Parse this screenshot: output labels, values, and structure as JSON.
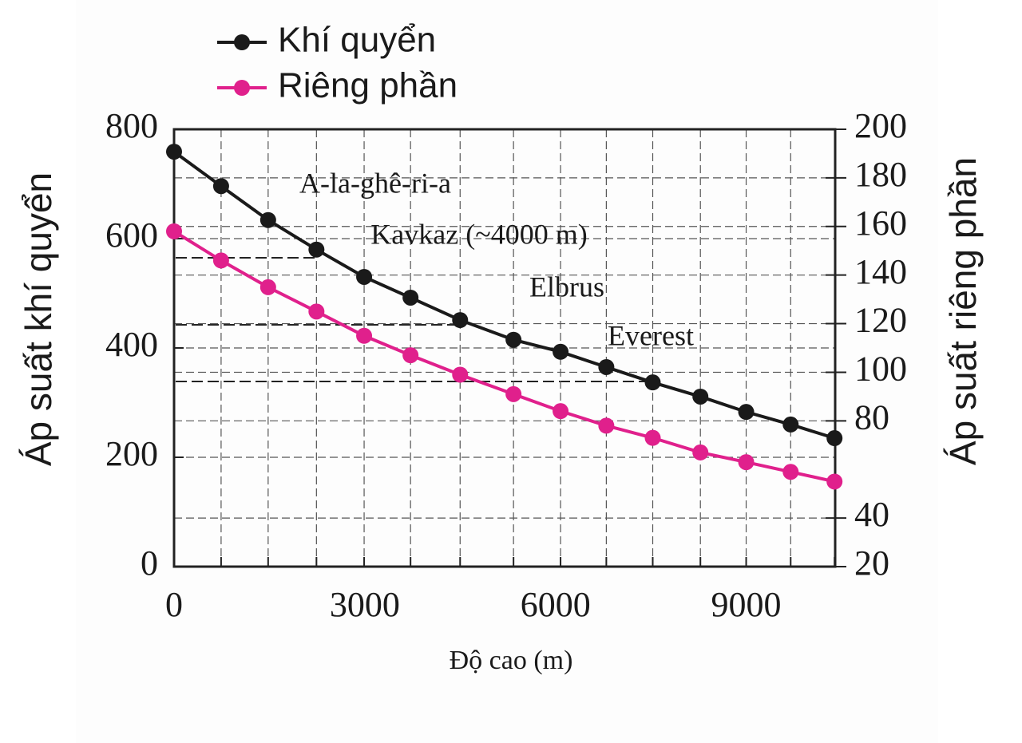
{
  "chart_data": {
    "type": "line",
    "x_label": "Độ cao (m)",
    "y_label": "Áp suất khí quyển",
    "y2_label": "Áp suất riêng phần",
    "x": [
      0,
      740,
      1480,
      2240,
      2990,
      3720,
      4500,
      5340,
      6080,
      6800,
      7530,
      8280,
      9000,
      9700,
      10390
    ],
    "series": [
      {
        "name": "Khí quyển",
        "color": "#1a1a1a",
        "values": [
          759,
          696,
          634,
          580,
          530,
          492,
          451,
          415,
          393,
          365,
          337,
          311,
          283,
          260,
          235
        ]
      },
      {
        "name": "Riêng phần",
        "color": "#e0208c",
        "axis": "y2",
        "values": [
          158,
          146,
          135,
          125,
          115,
          107,
          99,
          91,
          84,
          78,
          73,
          67,
          63,
          59,
          55
        ]
      }
    ],
    "xlim": [
      0,
      10400
    ],
    "xticks": [
      0,
      3000,
      6000,
      9000
    ],
    "ylim": [
      0,
      800
    ],
    "yticks": [
      0,
      200,
      400,
      600,
      800
    ],
    "y2lim": [
      20,
      200
    ],
    "y2ticks": [
      20,
      40,
      80,
      100,
      120,
      140,
      160,
      180,
      200
    ],
    "grid": true,
    "legend": "top-left",
    "annotations": [
      "A-la-ghê-ri-a",
      "Kavkaz (~4000 m)",
      "Elbrus",
      "Everest"
    ]
  }
}
